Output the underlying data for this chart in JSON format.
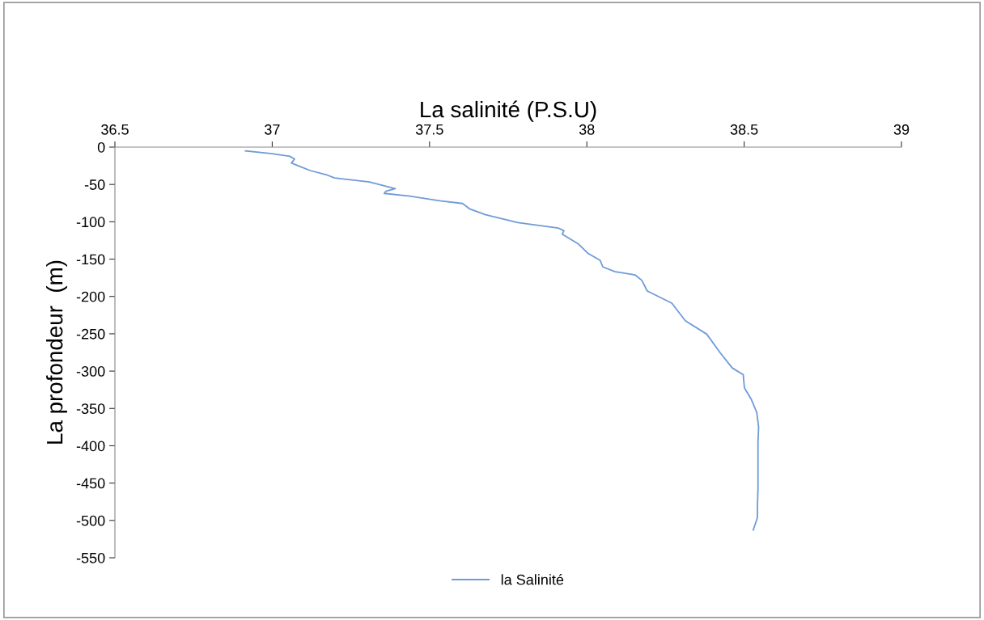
{
  "chart_data": {
    "type": "line",
    "xlabel": "La salinité (P.S.U)",
    "ylabel": "La profondeur  (m)",
    "xlim": [
      36.5,
      39
    ],
    "xticks": [
      36.5,
      37,
      37.5,
      38,
      38.5,
      39
    ],
    "ylim": [
      -550,
      0
    ],
    "yticks": [
      -550,
      -500,
      -450,
      -400,
      -350,
      -300,
      -250,
      -200,
      -150,
      -100,
      -50,
      0
    ],
    "grid": false,
    "legend": "bottom",
    "marker": "none",
    "line_style": "solid",
    "series": [
      {
        "name": "la Salinité",
        "color": "#6f9bd8",
        "x": [
          36.915,
          37.0,
          37.056,
          37.071,
          37.061,
          37.086,
          37.121,
          37.176,
          37.198,
          37.309,
          37.391,
          37.361,
          37.356,
          37.438,
          37.532,
          37.605,
          37.627,
          37.678,
          37.781,
          37.909,
          37.927,
          37.922,
          37.974,
          38.004,
          38.042,
          38.051,
          38.09,
          38.154,
          38.175,
          38.192,
          38.27,
          38.313,
          38.381,
          38.424,
          38.462,
          38.497,
          38.501,
          38.522,
          38.54,
          38.546,
          38.544,
          38.544,
          38.544,
          38.542,
          38.542,
          38.529
        ],
        "values": [
          -5.1,
          -8.7,
          -12.3,
          -15.9,
          -21.3,
          -25.6,
          -31.4,
          -37.6,
          -41.2,
          -46.6,
          -55.6,
          -59.2,
          -62.0,
          -65.7,
          -71.8,
          -75.5,
          -82.6,
          -90.6,
          -101.1,
          -108.3,
          -111.9,
          -116.6,
          -130.0,
          -142.4,
          -151.5,
          -160.5,
          -166.9,
          -171.3,
          -178.5,
          -192.7,
          -209.0,
          -232.5,
          -250.5,
          -275.6,
          -295.7,
          -304.7,
          -322.7,
          -337.2,
          -355.2,
          -375.0,
          -395.0,
          -420.3,
          -456.4,
          -485.6,
          -496.4,
          -512.8
        ]
      }
    ]
  }
}
